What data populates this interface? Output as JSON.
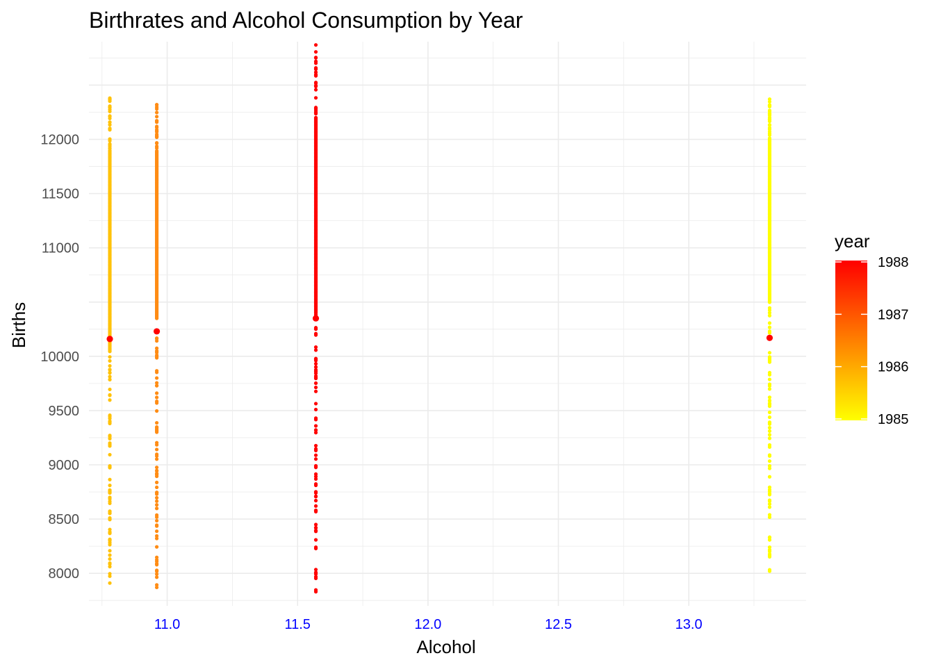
{
  "chart_data": {
    "type": "scatter",
    "title": "Birthrates and Alcohol Consumption by Year",
    "xlabel": "Alcohol",
    "ylabel": "Births",
    "xlim": [
      10.7,
      13.45
    ],
    "ylim": [
      7700,
      12900
    ],
    "x_ticks": [
      "11.0",
      "11.5",
      "12.0",
      "12.5",
      "13.0"
    ],
    "x_tick_values": [
      11.0,
      11.5,
      12.0,
      12.5,
      13.0
    ],
    "y_ticks": [
      "8000",
      "8500",
      "9000",
      "9500",
      "10000",
      "11000",
      "11500",
      "12000"
    ],
    "y_tick_values": [
      8000,
      8500,
      9000,
      9500,
      10000,
      11000,
      11500,
      12000
    ],
    "grid": true,
    "x_tick_color": "#0000ff",
    "legend": {
      "title": "year",
      "position": "right",
      "type": "colorbar",
      "labels": [
        "1988",
        "1987",
        "1986",
        "1985"
      ],
      "values": [
        1988,
        1987,
        1986,
        1985
      ],
      "low_color": "#ffff00",
      "high_color": "#ff0000"
    },
    "mean_point_color": "#ff0000",
    "series": [
      {
        "year": 1986,
        "alcohol": 10.78,
        "births_min": 7910,
        "births_max": 12380,
        "dense_min": 10050,
        "dense_max": 11900,
        "mean": 10160,
        "color": "#ffc20a"
      },
      {
        "year": 1987,
        "alcohol": 10.96,
        "births_min": 7870,
        "births_max": 12320,
        "dense_min": 10350,
        "dense_max": 11900,
        "mean": 10230,
        "color": "#ff8c14"
      },
      {
        "year": 1988,
        "alcohol": 11.57,
        "births_min": 7830,
        "births_max": 12870,
        "dense_min": 10400,
        "dense_max": 12200,
        "mean": 10350,
        "color": "#ff0000"
      },
      {
        "year": 1985,
        "alcohol": 13.31,
        "births_min": 8020,
        "births_max": 12370,
        "dense_min": 10500,
        "dense_max": 12000,
        "mean": 10170,
        "color": "#ffff00"
      }
    ]
  }
}
